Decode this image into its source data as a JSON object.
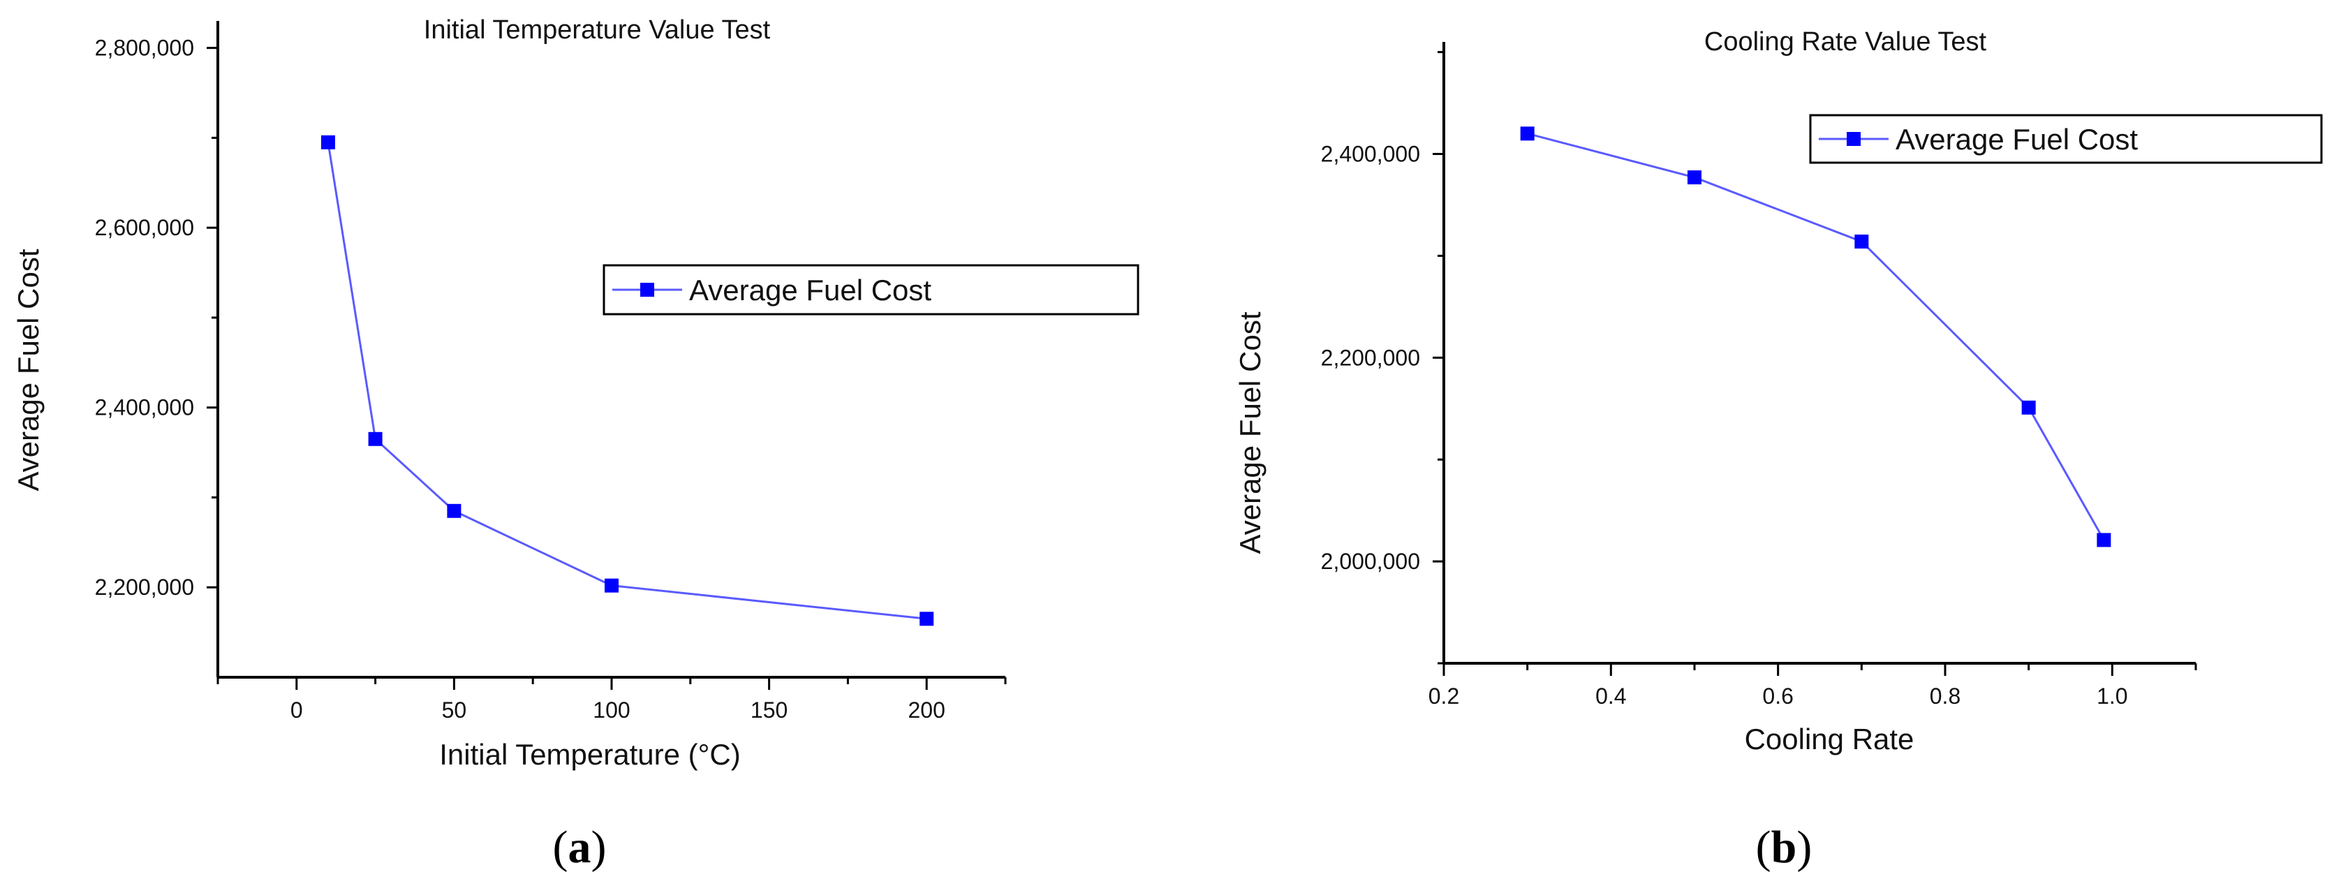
{
  "colors": {
    "series": "#0000ff",
    "series_line": "#5a5aff",
    "axis": "#000000",
    "text": "#111111"
  },
  "chart_data": [
    {
      "id": "a",
      "type": "line",
      "title": "Initial Temperature Value Test",
      "xlabel": "Initial Temperature (°C)",
      "ylabel": "Average Fuel Cost",
      "xlim": [
        -25,
        225
      ],
      "ylim": [
        2100000,
        2830000
      ],
      "xticks": [
        0,
        50,
        100,
        150,
        200
      ],
      "xtick_labels": [
        "0",
        "50",
        "100",
        "150",
        "200"
      ],
      "x_minor_ticks": [
        -25,
        25,
        75,
        125,
        175,
        225
      ],
      "yticks": [
        2200000,
        2400000,
        2600000,
        2800000
      ],
      "ytick_labels": [
        "2,200,000",
        "2,400,000",
        "2,600,000",
        "2,800,000"
      ],
      "y_minor_ticks": [
        2300000,
        2500000,
        2700000
      ],
      "legend_position": "upper-right",
      "series": [
        {
          "name": "Average Fuel Cost",
          "marker": "square",
          "x": [
            10,
            25,
            50,
            100,
            200
          ],
          "y": [
            2695000,
            2365000,
            2285000,
            2202000,
            2165000
          ]
        }
      ],
      "panel_open": "(",
      "panel_letter": "a",
      "panel_close": ")"
    },
    {
      "id": "b",
      "type": "line",
      "title": "Cooling Rate Value Test",
      "xlabel": "Cooling Rate",
      "ylabel": "Average Fuel Cost",
      "xlim": [
        0.2,
        1.1
      ],
      "ylim": [
        1900000,
        2510000
      ],
      "xticks": [
        0.2,
        0.4,
        0.6,
        0.8,
        1.0
      ],
      "xtick_labels": [
        "0.2",
        "0.4",
        "0.6",
        "0.8",
        "1.0"
      ],
      "x_minor_ticks": [
        0.3,
        0.5,
        0.7,
        0.9,
        1.1
      ],
      "yticks": [
        2000000,
        2200000,
        2400000
      ],
      "ytick_labels": [
        "2,000,000",
        "2,200,000",
        "2,400,000"
      ],
      "y_minor_ticks": [
        1900000,
        2100000,
        2300000,
        2500000
      ],
      "legend_position": "top-right",
      "series": [
        {
          "name": "Average Fuel Cost",
          "marker": "square",
          "x": [
            0.3,
            0.5,
            0.7,
            0.9,
            0.99
          ],
          "y": [
            2420000,
            2377000,
            2314000,
            2151000,
            2021000
          ]
        }
      ],
      "panel_open": "(",
      "panel_letter": "b",
      "panel_close": ")"
    }
  ]
}
